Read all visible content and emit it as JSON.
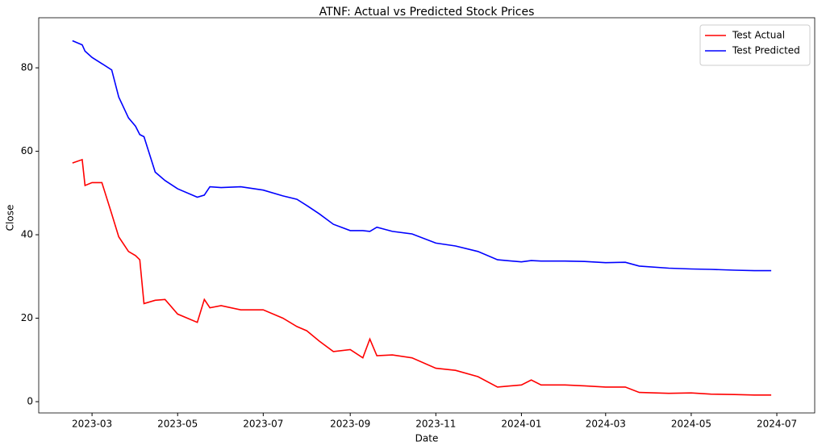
{
  "chart_data": {
    "type": "line",
    "title": "ATNF: Actual vs Predicted Stock Prices",
    "x_label": "Date",
    "y_label": "Close",
    "x": [
      "2023-02-15",
      "2023-02-22",
      "2023-02-24",
      "2023-03-01",
      "2023-03-08",
      "2023-03-15",
      "2023-03-20",
      "2023-03-27",
      "2023-04-01",
      "2023-04-04",
      "2023-04-07",
      "2023-04-15",
      "2023-04-22",
      "2023-05-01",
      "2023-05-15",
      "2023-05-20",
      "2023-05-24",
      "2023-06-01",
      "2023-06-15",
      "2023-07-01",
      "2023-07-15",
      "2023-07-25",
      "2023-08-01",
      "2023-08-10",
      "2023-08-20",
      "2023-09-01",
      "2023-09-10",
      "2023-09-15",
      "2023-09-20",
      "2023-10-01",
      "2023-10-15",
      "2023-11-01",
      "2023-11-15",
      "2023-12-01",
      "2023-12-15",
      "2024-01-01",
      "2024-01-08",
      "2024-01-15",
      "2024-02-01",
      "2024-02-15",
      "2024-03-01",
      "2024-03-15",
      "2024-03-25",
      "2024-04-15",
      "2024-05-01",
      "2024-05-15",
      "2024-06-01",
      "2024-06-15",
      "2024-06-27"
    ],
    "series": [
      {
        "name": "Test Actual",
        "color": "#ff0000",
        "values": [
          57.2,
          58,
          51.8,
          52.5,
          52.5,
          45,
          39.5,
          36,
          35,
          34,
          23.5,
          24.3,
          24.5,
          21,
          19,
          24.5,
          22.5,
          23,
          22,
          22,
          20,
          18,
          17,
          14.5,
          12,
          12.5,
          10.5,
          15,
          11,
          11.2,
          10.5,
          8,
          7.5,
          6,
          3.5,
          4,
          5.2,
          4,
          4,
          3.8,
          3.5,
          3.5,
          2.2,
          2.0,
          2.1,
          1.8,
          1.7,
          1.6,
          1.6
        ]
      },
      {
        "name": "Test Predicted",
        "color": "#0000ff",
        "values": [
          86.5,
          85.5,
          84,
          82.5,
          81,
          79.5,
          73,
          68,
          66,
          64,
          63.5,
          55,
          53,
          51,
          49,
          49.5,
          51.5,
          51.3,
          51.5,
          50.7,
          49.3,
          48.5,
          47,
          45,
          42.5,
          41,
          41,
          40.8,
          41.8,
          40.8,
          40.2,
          38,
          37.3,
          36,
          34,
          33.5,
          33.8,
          33.7,
          33.7,
          33.6,
          33.3,
          33.4,
          32.5,
          32,
          31.8,
          31.7,
          31.5,
          31.4,
          31.4
        ]
      }
    ],
    "xlim": [
      "2023-01-22",
      "2024-07-28"
    ],
    "xticks": [
      "2023-03",
      "2023-05",
      "2023-07",
      "2023-09",
      "2023-11",
      "2024-01",
      "2024-03",
      "2024-05",
      "2024-07"
    ],
    "ylim": [
      -2.7,
      92
    ],
    "yticks": [
      0,
      20,
      40,
      60,
      80
    ],
    "legend": "upper-right"
  }
}
